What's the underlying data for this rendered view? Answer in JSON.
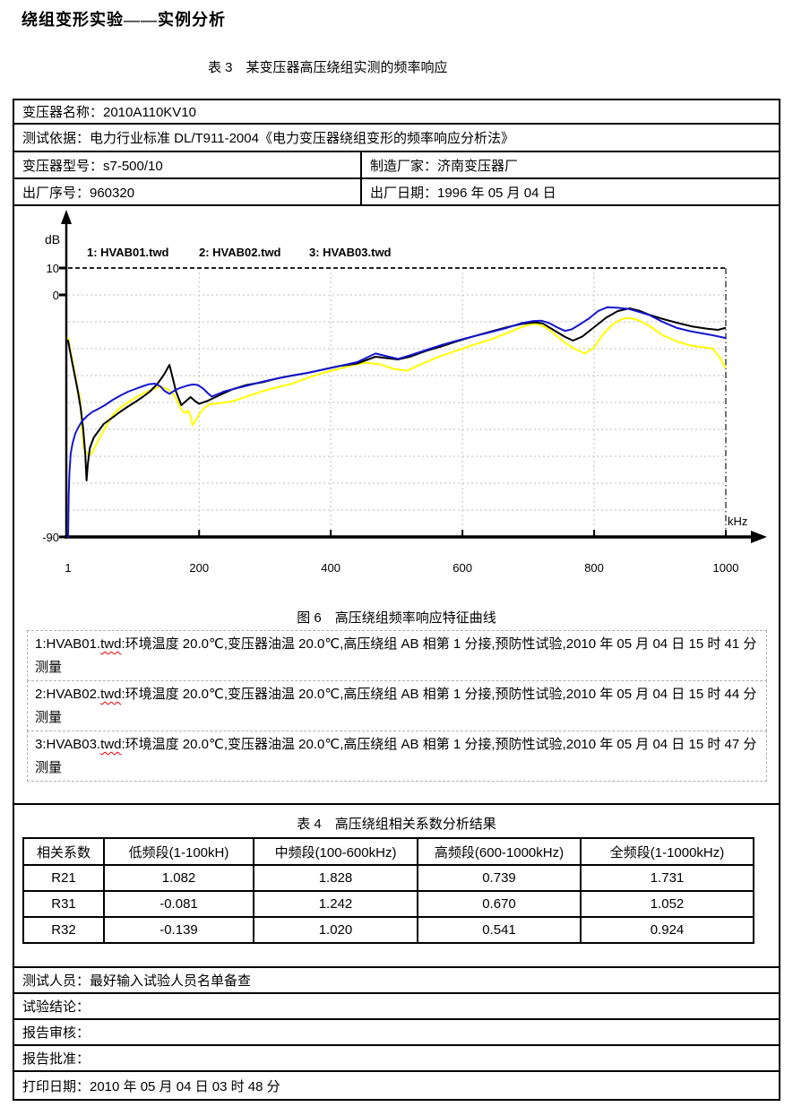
{
  "page": {
    "title": "绕组变形实验——实例分析"
  },
  "captions": {
    "table3": "表 3　某变压器高压绕组实测的频率响应",
    "figure6": "图 6　高压绕组频率响应特征曲线",
    "table4": "表 4　高压绕组相关系数分析结果"
  },
  "info": {
    "name": "变压器名称：2010A110KV10",
    "standard": "测试依据：电力行业标准 DL/T911-2004《电力变压器绕组变形的频率响应分析法》",
    "model": "变压器型号：s7-500/10",
    "manufacturer": "制造厂家：济南变压器厂",
    "serial": "出厂序号：960320",
    "factory_date": "出厂日期：1996 年 05 月 04 日"
  },
  "descriptions": [
    {
      "pre": "1:HVAB01.",
      "spell": "twd",
      "post": ":环境温度 20.0℃,变压器油温 20.0℃,高压绕组 AB 相第 1 分接,预防性试验,2010 年 05 月 04 日 15 时 41 分测量"
    },
    {
      "pre": "2:HVAB02.",
      "spell": "twd",
      "post": ":环境温度 20.0℃,变压器油温 20.0℃,高压绕组 AB 相第 1 分接,预防性试验,2010 年 05 月 04 日 15 时 44 分测量"
    },
    {
      "pre": "3:HVAB03.",
      "spell": "twd",
      "post": ":环境温度 20.0℃,变压器油温 20.0℃,高压绕组 AB 相第 1 分接,预防性试验,2010 年 05 月 04 日 15 时 47 分测量"
    }
  ],
  "correlation_table": {
    "headers": [
      "相关系数",
      "低频段(1-100kH)",
      "中频段(100-600kHz)",
      "高频段(600-1000kHz)",
      "全频段(1-1000kHz)"
    ],
    "rows": [
      [
        "R21",
        "1.082",
        "1.828",
        "0.739",
        "1.731"
      ],
      [
        "R31",
        "-0.081",
        "1.242",
        "0.670",
        "1.052"
      ],
      [
        "R32",
        "-0.139",
        "1.020",
        "0.541",
        "0.924"
      ]
    ]
  },
  "footer": {
    "tester": "测试人员：最好输入试验人员名单备查",
    "conclusion": "试验结论：",
    "review": "报告审核：",
    "approval": "报告批准：",
    "print_date": "打印日期：2010 年 05 月 04 日 03 时 48 分"
  },
  "colors": {
    "series1": "#000000",
    "series2": "#ffff00",
    "series3": "#1515d0",
    "grid": "#c9c9c9",
    "boundary": "#333333",
    "border": "#000000",
    "spellcheck": "#e00000"
  },
  "chart_data": {
    "type": "line",
    "title": "图 6 高压绕组频率响应特征曲线",
    "xlabel": "kHz",
    "ylabel": "dB",
    "xlim": [
      1,
      1000
    ],
    "ylim": [
      -90,
      10
    ],
    "x_ticks": [
      1,
      200,
      400,
      600,
      800,
      1000
    ],
    "y_tick_labels": [
      10,
      0,
      -90
    ],
    "grid": {
      "style": "dotted",
      "horizontal_step_db": 10,
      "vertical_at": [
        200,
        400,
        600,
        800
      ],
      "top_boundary_db": 10,
      "right_boundary_khz": 1000
    },
    "legend_position": "top-inside",
    "series": [
      {
        "name": "1: HVAB01.twd",
        "color": "#000000",
        "points": [
          [
            1,
            -17
          ],
          [
            4,
            -21
          ],
          [
            8,
            -26
          ],
          [
            12,
            -31
          ],
          [
            16,
            -36
          ],
          [
            20,
            -42
          ],
          [
            24,
            -50
          ],
          [
            27,
            -59
          ],
          [
            29,
            -69
          ],
          [
            31,
            -63
          ],
          [
            34,
            -57
          ],
          [
            40,
            -53
          ],
          [
            46,
            -51
          ],
          [
            55,
            -48
          ],
          [
            69,
            -45.5
          ],
          [
            80,
            -43.5
          ],
          [
            92,
            -41.5
          ],
          [
            105,
            -39.5
          ],
          [
            114,
            -38
          ],
          [
            125,
            -36
          ],
          [
            137,
            -33
          ],
          [
            147,
            -29.5
          ],
          [
            155,
            -26
          ],
          [
            159,
            -30
          ],
          [
            165,
            -36
          ],
          [
            173,
            -41
          ],
          [
            180,
            -39.5
          ],
          [
            187,
            -38
          ],
          [
            194,
            -39.5
          ],
          [
            200,
            -40.5
          ],
          [
            212,
            -39.5
          ],
          [
            225,
            -38
          ],
          [
            238,
            -36.5
          ],
          [
            252,
            -35
          ],
          [
            272,
            -33.5
          ],
          [
            296,
            -32.5
          ],
          [
            320,
            -31
          ],
          [
            341,
            -30
          ],
          [
            365,
            -29
          ],
          [
            384,
            -28
          ],
          [
            412,
            -26.5
          ],
          [
            440,
            -25.5
          ],
          [
            468,
            -23
          ],
          [
            502,
            -24
          ],
          [
            520,
            -23
          ],
          [
            545,
            -20.8
          ],
          [
            570,
            -19
          ],
          [
            595,
            -17
          ],
          [
            620,
            -15.2
          ],
          [
            645,
            -13.5
          ],
          [
            668,
            -12
          ],
          [
            690,
            -10.8
          ],
          [
            710,
            -10.2
          ],
          [
            722,
            -10.6
          ],
          [
            738,
            -13
          ],
          [
            755,
            -15.5
          ],
          [
            768,
            -17
          ],
          [
            782,
            -15.5
          ],
          [
            800,
            -12
          ],
          [
            818,
            -8.5
          ],
          [
            836,
            -6
          ],
          [
            854,
            -5
          ],
          [
            870,
            -6
          ],
          [
            885,
            -7.5
          ],
          [
            905,
            -9
          ],
          [
            928,
            -10.5
          ],
          [
            950,
            -11.8
          ],
          [
            972,
            -12.6
          ],
          [
            988,
            -13
          ],
          [
            999,
            -12.3
          ]
        ]
      },
      {
        "name": "2: HVAB02.twd",
        "color": "#ffff00",
        "points": [
          [
            1,
            -16
          ],
          [
            4,
            -20
          ],
          [
            8,
            -25
          ],
          [
            12,
            -30
          ],
          [
            15,
            -34.5
          ],
          [
            17,
            -38
          ],
          [
            18,
            -36.5
          ],
          [
            20,
            -41
          ],
          [
            22,
            -50
          ],
          [
            25,
            -57
          ],
          [
            29,
            -58.5
          ],
          [
            33,
            -59.5
          ],
          [
            37,
            -59
          ],
          [
            42,
            -56.5
          ],
          [
            48,
            -53.5
          ],
          [
            55,
            -50.5
          ],
          [
            62,
            -47.5
          ],
          [
            69,
            -44.5
          ],
          [
            80,
            -42
          ],
          [
            92,
            -40
          ],
          [
            103,
            -38.3
          ],
          [
            114,
            -36.8
          ],
          [
            125,
            -35.5
          ],
          [
            133,
            -34.8
          ],
          [
            139,
            -34.2
          ],
          [
            146,
            -34.5
          ],
          [
            153,
            -35.2
          ],
          [
            161,
            -37
          ],
          [
            168,
            -40
          ],
          [
            174,
            -43
          ],
          [
            179,
            -44
          ],
          [
            183,
            -43
          ],
          [
            187,
            -45
          ],
          [
            190,
            -48.5
          ],
          [
            194,
            -47
          ],
          [
            200,
            -44.5
          ],
          [
            208,
            -42
          ],
          [
            216,
            -40.7
          ],
          [
            228,
            -40.3
          ],
          [
            240,
            -40
          ],
          [
            252,
            -39.5
          ],
          [
            266,
            -38.3
          ],
          [
            282,
            -37
          ],
          [
            298,
            -35.7
          ],
          [
            320,
            -34.3
          ],
          [
            341,
            -33
          ],
          [
            363,
            -31
          ],
          [
            384,
            -29.3
          ],
          [
            412,
            -27.5
          ],
          [
            432,
            -26.3
          ],
          [
            452,
            -25.2
          ],
          [
            475,
            -25.8
          ],
          [
            495,
            -27.5
          ],
          [
            516,
            -28.2
          ],
          [
            535,
            -26
          ],
          [
            566,
            -22.8
          ],
          [
            590,
            -20.8
          ],
          [
            615,
            -18.7
          ],
          [
            640,
            -16.8
          ],
          [
            664,
            -14.6
          ],
          [
            686,
            -12.3
          ],
          [
            702,
            -11
          ],
          [
            714,
            -10.8
          ],
          [
            728,
            -12.3
          ],
          [
            742,
            -15
          ],
          [
            757,
            -18
          ],
          [
            770,
            -20
          ],
          [
            786,
            -21.8
          ],
          [
            800,
            -19.5
          ],
          [
            814,
            -14.5
          ],
          [
            828,
            -11
          ],
          [
            842,
            -9
          ],
          [
            854,
            -8.5
          ],
          [
            868,
            -9.5
          ],
          [
            884,
            -11.5
          ],
          [
            904,
            -15
          ],
          [
            928,
            -17.5
          ],
          [
            950,
            -19
          ],
          [
            968,
            -19.5
          ],
          [
            980,
            -20
          ],
          [
            990,
            -23
          ],
          [
            999,
            -27
          ]
        ]
      },
      {
        "name": "3: HVAB03.twd",
        "color": "#1515d0",
        "points": [
          [
            1,
            -90
          ],
          [
            2,
            -74
          ],
          [
            3,
            -66
          ],
          [
            5,
            -59
          ],
          [
            8,
            -55
          ],
          [
            12,
            -51.5
          ],
          [
            16,
            -49.5
          ],
          [
            22,
            -47
          ],
          [
            30,
            -45
          ],
          [
            38,
            -43.5
          ],
          [
            46,
            -42.5
          ],
          [
            57,
            -41
          ],
          [
            69,
            -39
          ],
          [
            80,
            -37.5
          ],
          [
            92,
            -36
          ],
          [
            103,
            -35
          ],
          [
            114,
            -34
          ],
          [
            124,
            -33.2
          ],
          [
            133,
            -33
          ],
          [
            141,
            -34
          ],
          [
            148,
            -35.8
          ],
          [
            155,
            -36.8
          ],
          [
            163,
            -35.5
          ],
          [
            171,
            -34.6
          ],
          [
            181,
            -33.8
          ],
          [
            190,
            -33.3
          ],
          [
            198,
            -33.5
          ],
          [
            206,
            -34.8
          ],
          [
            213,
            -36.5
          ],
          [
            219,
            -37.8
          ],
          [
            227,
            -37
          ],
          [
            237,
            -36
          ],
          [
            252,
            -35
          ],
          [
            272,
            -33.8
          ],
          [
            296,
            -32.3
          ],
          [
            320,
            -31
          ],
          [
            341,
            -30
          ],
          [
            365,
            -29
          ],
          [
            384,
            -28
          ],
          [
            412,
            -26.5
          ],
          [
            440,
            -25
          ],
          [
            468,
            -21.8
          ],
          [
            502,
            -23.8
          ],
          [
            520,
            -22.5
          ],
          [
            545,
            -20.5
          ],
          [
            570,
            -18.5
          ],
          [
            595,
            -16.8
          ],
          [
            620,
            -15.2
          ],
          [
            645,
            -13.7
          ],
          [
            668,
            -12.2
          ],
          [
            690,
            -10.5
          ],
          [
            708,
            -9.7
          ],
          [
            720,
            -9.6
          ],
          [
            732,
            -10.5
          ],
          [
            745,
            -12.2
          ],
          [
            756,
            -13.4
          ],
          [
            766,
            -12.8
          ],
          [
            778,
            -11
          ],
          [
            792,
            -8.8
          ],
          [
            806,
            -6
          ],
          [
            820,
            -4.6
          ],
          [
            836,
            -4.8
          ],
          [
            852,
            -5.2
          ],
          [
            868,
            -6.3
          ],
          [
            884,
            -7.5
          ],
          [
            902,
            -9.8
          ],
          [
            926,
            -12.3
          ],
          [
            946,
            -13.5
          ],
          [
            962,
            -14.2
          ],
          [
            980,
            -15
          ],
          [
            999,
            -16
          ]
        ]
      }
    ]
  }
}
